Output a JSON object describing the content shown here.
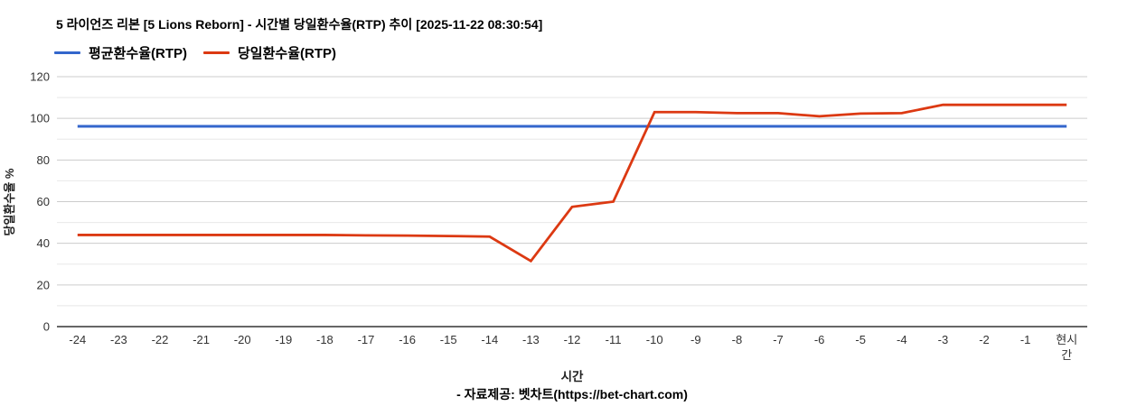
{
  "chart_data": {
    "type": "line",
    "title": "5 라이언즈 리본 [5 Lions Reborn] - 시간별 당일환수율(RTP) 추이 [2025-11-22 08:30:54]",
    "xlabel": "시간",
    "ylabel": "당일환수율 %",
    "ylim": [
      0,
      120
    ],
    "y_major_ticks": [
      0,
      20,
      40,
      60,
      80,
      100,
      120
    ],
    "y_minor_ticks": [
      10,
      30,
      50,
      70,
      90,
      110
    ],
    "grid": true,
    "legend_position": "top",
    "categories": [
      "-24",
      "-23",
      "-22",
      "-21",
      "-20",
      "-19",
      "-18",
      "-17",
      "-16",
      "-15",
      "-14",
      "-13",
      "-12",
      "-11",
      "-10",
      "-9",
      "-8",
      "-7",
      "-6",
      "-5",
      "-4",
      "-3",
      "-2",
      "-1",
      "현시간"
    ],
    "series": [
      {
        "name": "평균환수율(RTP)",
        "color": "#3366cc",
        "values": [
          96.2,
          96.2,
          96.2,
          96.2,
          96.2,
          96.2,
          96.2,
          96.2,
          96.2,
          96.2,
          96.2,
          96.2,
          96.2,
          96.2,
          96.2,
          96.2,
          96.2,
          96.2,
          96.2,
          96.2,
          96.2,
          96.2,
          96.2,
          96.2,
          96.2
        ]
      },
      {
        "name": "당일환수율(RTP)",
        "color": "#dc3912",
        "values": [
          44,
          44,
          44,
          44,
          44,
          44,
          44,
          43.8,
          43.7,
          43.5,
          43.2,
          31.5,
          57.5,
          60,
          103,
          103,
          102.5,
          102.5,
          101,
          102.3,
          102.5,
          106.5,
          106.5,
          106.5,
          106.5
        ]
      }
    ]
  },
  "footer": {
    "credit": "- 자료제공: 벳차트(https://bet-chart.com)"
  },
  "colors": {
    "grid_major": "#cccccc",
    "grid_minor": "#e8e8e8",
    "axis_line": "#333333",
    "tick_text": "#333333"
  }
}
